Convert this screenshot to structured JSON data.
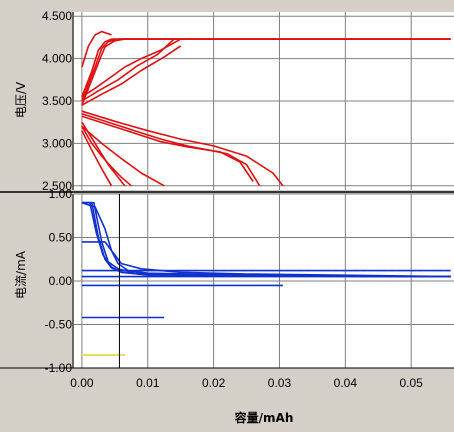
{
  "chart_data": [
    {
      "type": "line",
      "ylabel": "电压/V",
      "xlim": [
        -0.0012,
        0.0565
      ],
      "ylim": [
        2.45,
        4.55
      ],
      "yticks": [
        2.5,
        3.0,
        3.5,
        4.0,
        4.5
      ],
      "ytick_labels": [
        "2.500",
        "3.000",
        "3.500",
        "4.000",
        "4.500"
      ],
      "xticks": [
        0.0,
        0.01,
        0.02,
        0.03,
        0.04,
        0.05
      ],
      "grid": true,
      "series_color": "#e01010",
      "series": [
        {
          "x": [
            0.0,
            0.0015,
            0.0025,
            0.0035,
            0.0045,
            0.056
          ],
          "y": [
            3.55,
            3.85,
            4.1,
            4.2,
            4.23,
            4.23
          ]
        },
        {
          "x": [
            0.0,
            0.002,
            0.003,
            0.004,
            0.0055,
            0.056
          ],
          "y": [
            3.5,
            3.9,
            4.12,
            4.2,
            4.23,
            4.23
          ]
        },
        {
          "x": [
            0.0,
            0.0025,
            0.0035,
            0.005,
            0.0065,
            0.056
          ],
          "y": [
            3.45,
            3.95,
            4.14,
            4.21,
            4.23,
            4.23
          ]
        },
        {
          "x": [
            0.0,
            0.001,
            0.002,
            0.003,
            0.0045
          ],
          "y": [
            3.9,
            4.15,
            4.28,
            4.32,
            4.28
          ]
        },
        {
          "x": [
            0.0,
            0.002,
            0.004,
            0.0065,
            0.009,
            0.012,
            0.015
          ],
          "y": [
            3.55,
            3.65,
            3.76,
            3.9,
            4.0,
            4.1,
            4.23
          ]
        },
        {
          "x": [
            0.0,
            0.0025,
            0.0055,
            0.0085,
            0.0115,
            0.014
          ],
          "y": [
            3.5,
            3.62,
            3.75,
            3.92,
            4.05,
            4.23
          ]
        },
        {
          "x": [
            0.0,
            0.003,
            0.006,
            0.009,
            0.0125,
            0.015
          ],
          "y": [
            3.45,
            3.58,
            3.7,
            3.86,
            4.02,
            4.15
          ]
        },
        {
          "x": [
            0.0,
            0.004,
            0.008,
            0.012,
            0.016,
            0.022,
            0.025,
            0.027
          ],
          "y": [
            3.35,
            3.25,
            3.15,
            3.05,
            2.97,
            2.88,
            2.75,
            2.5
          ]
        },
        {
          "x": [
            0.0,
            0.004,
            0.008,
            0.012,
            0.016,
            0.021,
            0.024,
            0.026
          ],
          "y": [
            3.32,
            3.22,
            3.12,
            3.02,
            2.96,
            2.9,
            2.78,
            2.55
          ]
        },
        {
          "x": [
            0.0,
            0.005,
            0.01,
            0.015,
            0.02,
            0.025,
            0.029,
            0.0305
          ],
          "y": [
            3.38,
            3.26,
            3.15,
            3.05,
            2.97,
            2.85,
            2.65,
            2.5
          ]
        },
        {
          "x": [
            0.0,
            0.003,
            0.006,
            0.009,
            0.0125
          ],
          "y": [
            3.2,
            3.0,
            2.82,
            2.65,
            2.5
          ]
        },
        {
          "x": [
            0.0,
            0.002,
            0.004,
            0.0065
          ],
          "y": [
            3.25,
            3.0,
            2.75,
            2.5
          ]
        },
        {
          "x": [
            0.0,
            0.0015,
            0.003,
            0.0045
          ],
          "y": [
            3.15,
            2.92,
            2.7,
            2.5
          ]
        },
        {
          "x": [
            0.0,
            0.0015,
            0.003,
            0.0045,
            0.006,
            0.0075
          ],
          "y": [
            3.2,
            3.0,
            2.85,
            2.72,
            2.6,
            2.5
          ]
        }
      ]
    },
    {
      "type": "line",
      "xlabel": "容量/mAh",
      "ylabel": "电流/mA",
      "xlim": [
        -0.0012,
        0.0565
      ],
      "ylim": [
        -1.0,
        1.0
      ],
      "yticks": [
        -1.0,
        -0.5,
        0.0,
        0.5,
        1.0
      ],
      "ytick_labels": [
        "-1.00",
        "-0.50",
        "0.00",
        "0.50",
        "1.00"
      ],
      "xticks": [
        0.0,
        0.01,
        0.02,
        0.03,
        0.04,
        0.05
      ],
      "xtick_labels": [
        "0.00",
        "0.01",
        "0.02",
        "0.03",
        "0.04",
        "0.05"
      ],
      "grid": true,
      "cursor_x": 0.0057,
      "series_color": "#1030d0",
      "series": [
        {
          "x": [
            0.0,
            0.0015,
            0.0025,
            0.0035,
            0.0045,
            0.006,
            0.01,
            0.02,
            0.056
          ],
          "y": [
            0.9,
            0.9,
            0.5,
            0.25,
            0.15,
            0.1,
            0.07,
            0.06,
            0.05
          ]
        },
        {
          "x": [
            0.0,
            0.0012,
            0.0022,
            0.0032,
            0.0045,
            0.006,
            0.01,
            0.056
          ],
          "y": [
            0.9,
            0.9,
            0.55,
            0.3,
            0.16,
            0.1,
            0.07,
            0.05
          ]
        },
        {
          "x": [
            0.0,
            0.0018,
            0.003,
            0.004,
            0.0055,
            0.008,
            0.015,
            0.056
          ],
          "y": [
            0.9,
            0.9,
            0.45,
            0.22,
            0.14,
            0.09,
            0.06,
            0.05
          ]
        },
        {
          "x": [
            0.0,
            0.002,
            0.0035,
            0.0045,
            0.006,
            0.009,
            0.015,
            0.025,
            0.056
          ],
          "y": [
            0.9,
            0.85,
            0.6,
            0.35,
            0.2,
            0.14,
            0.1,
            0.08,
            0.05
          ]
        },
        {
          "x": [
            0.0,
            0.0035,
            0.0045,
            0.0055,
            0.007,
            0.01,
            0.03,
            0.056
          ],
          "y": [
            0.45,
            0.45,
            0.35,
            0.2,
            0.12,
            0.09,
            0.06,
            0.05
          ]
        },
        {
          "x": [
            0.0,
            0.056
          ],
          "y": [
            0.12,
            0.12
          ]
        },
        {
          "x": [
            0.0,
            0.056
          ],
          "y": [
            0.05,
            0.05
          ]
        },
        {
          "x": [
            0.0,
            0.0305
          ],
          "y": [
            -0.05,
            -0.05
          ]
        },
        {
          "x": [
            0.0,
            0.0125
          ],
          "y": [
            -0.42,
            -0.42
          ]
        },
        {
          "x": [
            0.0,
            0.0065
          ],
          "y": [
            -0.85,
            -0.85
          ]
        }
      ],
      "highlight_series": {
        "x": [
          0.0,
          0.0065
        ],
        "y": [
          -0.85,
          -0.85
        ],
        "color": "#f0e060"
      },
      "guide_series": {
        "x": [
          0.0,
          0.056
        ],
        "y": [
          0.12,
          0.12
        ],
        "style": "dashed"
      }
    }
  ]
}
